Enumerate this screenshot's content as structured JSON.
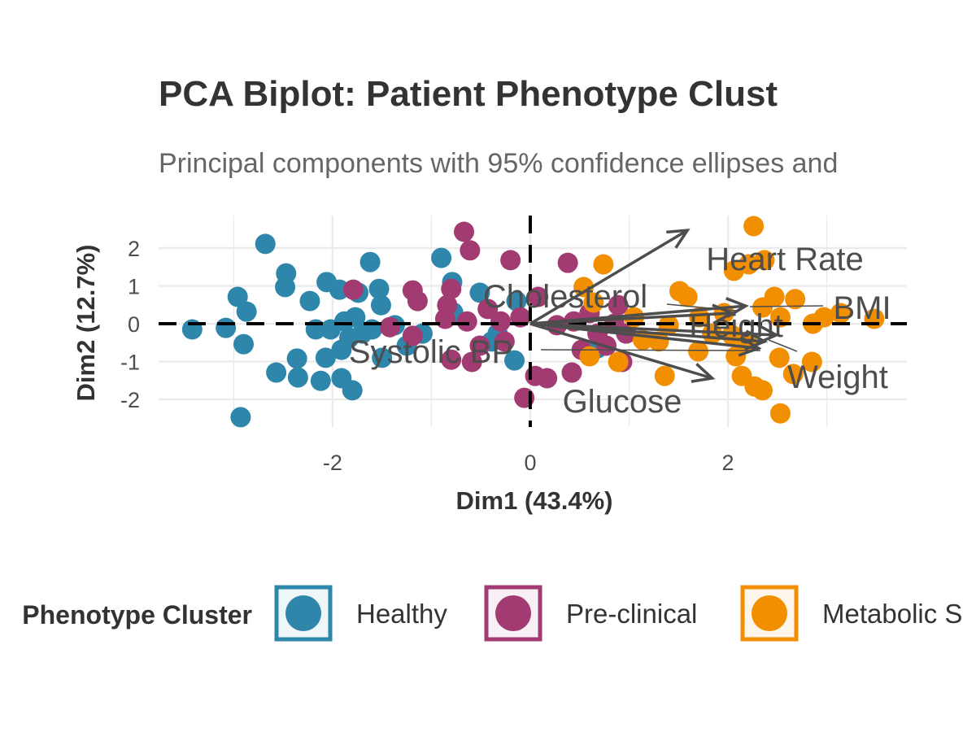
{
  "chart_data": {
    "type": "scatter",
    "title": "PCA Biplot: Patient Phenotype Clust",
    "subtitle": "Principal components with 95% confidence ellipses and",
    "xlabel": "Dim1 (43.4%)",
    "ylabel": "Dim2 (12.7%)",
    "xlim": [
      -3.76,
      3.81
    ],
    "ylim": [
      -2.73,
      2.86
    ],
    "x_ticks": [
      -2,
      0,
      2
    ],
    "x_tick_labels": [
      "-2",
      "0",
      "2"
    ],
    "y_ticks": [
      -2,
      -1,
      0,
      1,
      2
    ],
    "y_tick_labels": [
      "-2",
      "-1",
      "0",
      "1",
      "2"
    ],
    "grid": true,
    "legend": {
      "title": "Phenotype Cluster",
      "placement": "bottom",
      "entries": [
        "Healthy",
        "Pre-clinical",
        "Metabolic S"
      ]
    },
    "series": [
      {
        "name": "Healthy",
        "color": "#2E86AB",
        "points": [
          [
            -3.42,
            -0.15
          ],
          [
            -3.08,
            -0.11
          ],
          [
            -2.96,
            0.71
          ],
          [
            -2.87,
            0.32
          ],
          [
            -2.9,
            -0.54
          ],
          [
            -2.93,
            -2.47
          ],
          [
            -2.68,
            2.11
          ],
          [
            -2.47,
            1.33
          ],
          [
            -2.48,
            0.97
          ],
          [
            -2.57,
            -1.29
          ],
          [
            -2.35,
            -1.42
          ],
          [
            -2.36,
            -0.92
          ],
          [
            -2.23,
            0.6
          ],
          [
            -2.17,
            -0.15
          ],
          [
            -2.06,
            1.1
          ],
          [
            -2.12,
            -1.51
          ],
          [
            -2.02,
            -0.15
          ],
          [
            -1.93,
            0.9
          ],
          [
            -2.07,
            -0.9
          ],
          [
            -1.91,
            -1.44
          ],
          [
            -1.88,
            0.06
          ],
          [
            -1.8,
            -1.76
          ],
          [
            -1.77,
            0.17
          ],
          [
            -1.74,
            0.82
          ],
          [
            -1.62,
            1.63
          ],
          [
            -1.53,
            0.92
          ],
          [
            -1.51,
            0.49
          ],
          [
            -1.7,
            -0.26
          ],
          [
            -1.6,
            -0.15
          ],
          [
            -1.5,
            -0.9
          ],
          [
            -1.37,
            -0.04
          ],
          [
            -1.25,
            -0.58
          ],
          [
            -1.09,
            -0.26
          ],
          [
            -0.9,
            1.74
          ],
          [
            -0.79,
            1.1
          ],
          [
            -0.78,
            0.3
          ],
          [
            -0.51,
            0.82
          ],
          [
            -0.39,
            -0.47
          ],
          [
            -0.16,
            -0.97
          ],
          [
            -0.14,
            0.6
          ],
          [
            -0.33,
            -0.26
          ],
          [
            -1.91,
            -0.69
          ],
          [
            -1.83,
            -0.37
          ],
          [
            0.68,
            -0.65
          ]
        ]
      },
      {
        "name": "Pre-clinical",
        "color": "#A23B72",
        "points": [
          [
            -0.67,
            2.43
          ],
          [
            -0.61,
            1.94
          ],
          [
            -0.2,
            1.68
          ],
          [
            0.38,
            1.61
          ],
          [
            -1.79,
            0.9
          ],
          [
            -1.19,
            0.88
          ],
          [
            -1.14,
            0.6
          ],
          [
            -0.84,
            0.49
          ],
          [
            -0.8,
            0.92
          ],
          [
            -0.86,
            0.13
          ],
          [
            -1.42,
            -0.09
          ],
          [
            -1.19,
            -0.32
          ],
          [
            -0.8,
            -0.95
          ],
          [
            -0.59,
            -1.01
          ],
          [
            -0.64,
            0.06
          ],
          [
            -0.43,
            0.39
          ],
          [
            -0.3,
            0.06
          ],
          [
            -0.1,
            0.17
          ],
          [
            0.08,
            0.71
          ],
          [
            -0.06,
            -1.96
          ],
          [
            0.05,
            -1.38
          ],
          [
            0.17,
            -1.44
          ],
          [
            0.42,
            -1.29
          ],
          [
            0.44,
            0.06
          ],
          [
            0.6,
            0.28
          ],
          [
            0.68,
            -0.26
          ],
          [
            0.77,
            -0.58
          ],
          [
            0.89,
            0.49
          ],
          [
            0.93,
            -1.01
          ],
          [
            0.97,
            -0.26
          ],
          [
            -0.26,
            -0.47
          ],
          [
            -0.51,
            -0.58
          ],
          [
            0.27,
            -0.04
          ],
          [
            0.52,
            -0.69
          ],
          [
            0.85,
            0.0
          ]
        ]
      },
      {
        "name": "Metabolic S",
        "color": "#F18F01",
        "points": [
          [
            2.26,
            2.58
          ],
          [
            0.74,
            1.57
          ],
          [
            0.54,
            0.97
          ],
          [
            0.64,
            0.56
          ],
          [
            1.51,
            0.86
          ],
          [
            1.59,
            0.71
          ],
          [
            2.06,
            1.4
          ],
          [
            2.21,
            1.57
          ],
          [
            2.37,
            1.68
          ],
          [
            2.47,
            0.71
          ],
          [
            2.68,
            0.65
          ],
          [
            2.86,
            0.0
          ],
          [
            2.97,
            0.17
          ],
          [
            3.14,
            0.28
          ],
          [
            3.48,
            0.13
          ],
          [
            2.35,
            0.43
          ],
          [
            2.53,
            0.17
          ],
          [
            2.08,
            -0.86
          ],
          [
            2.14,
            -1.38
          ],
          [
            2.27,
            -1.66
          ],
          [
            2.35,
            -1.76
          ],
          [
            2.52,
            -0.9
          ],
          [
            2.66,
            -1.33
          ],
          [
            2.85,
            -1.01
          ],
          [
            2.53,
            -2.37
          ],
          [
            1.36,
            -1.38
          ],
          [
            1.7,
            -0.73
          ],
          [
            1.84,
            -0.26
          ],
          [
            1.3,
            -0.47
          ],
          [
            1.14,
            -0.43
          ],
          [
            1.4,
            -0.04
          ],
          [
            0.6,
            -0.86
          ],
          [
            0.89,
            -1.01
          ],
          [
            1.71,
            0.17
          ],
          [
            1.96,
            0.28
          ],
          [
            2.04,
            -0.3
          ],
          [
            2.19,
            -0.47
          ],
          [
            1.05,
            0.17
          ]
        ]
      }
    ],
    "variables": [
      {
        "name": "Heart Rate",
        "x": 1.59,
        "y": 2.47
      },
      {
        "name": "Cholesterol",
        "x": 2.04,
        "y": 0.28
      },
      {
        "name": "BMI",
        "x": 2.18,
        "y": 0.47
      },
      {
        "name": "Height",
        "x": 2.49,
        "y": -0.3
      },
      {
        "name": "Systolic BP",
        "x": 2.31,
        "y": -0.65
      },
      {
        "name": "Weight",
        "x": 2.37,
        "y": -0.47
      },
      {
        "name": "Glucose",
        "x": 1.84,
        "y": -1.44
      }
    ],
    "arrow_color": "#4D4D4D",
    "reference_lines": {
      "x": 0,
      "y": 0,
      "style": "dashed"
    }
  }
}
